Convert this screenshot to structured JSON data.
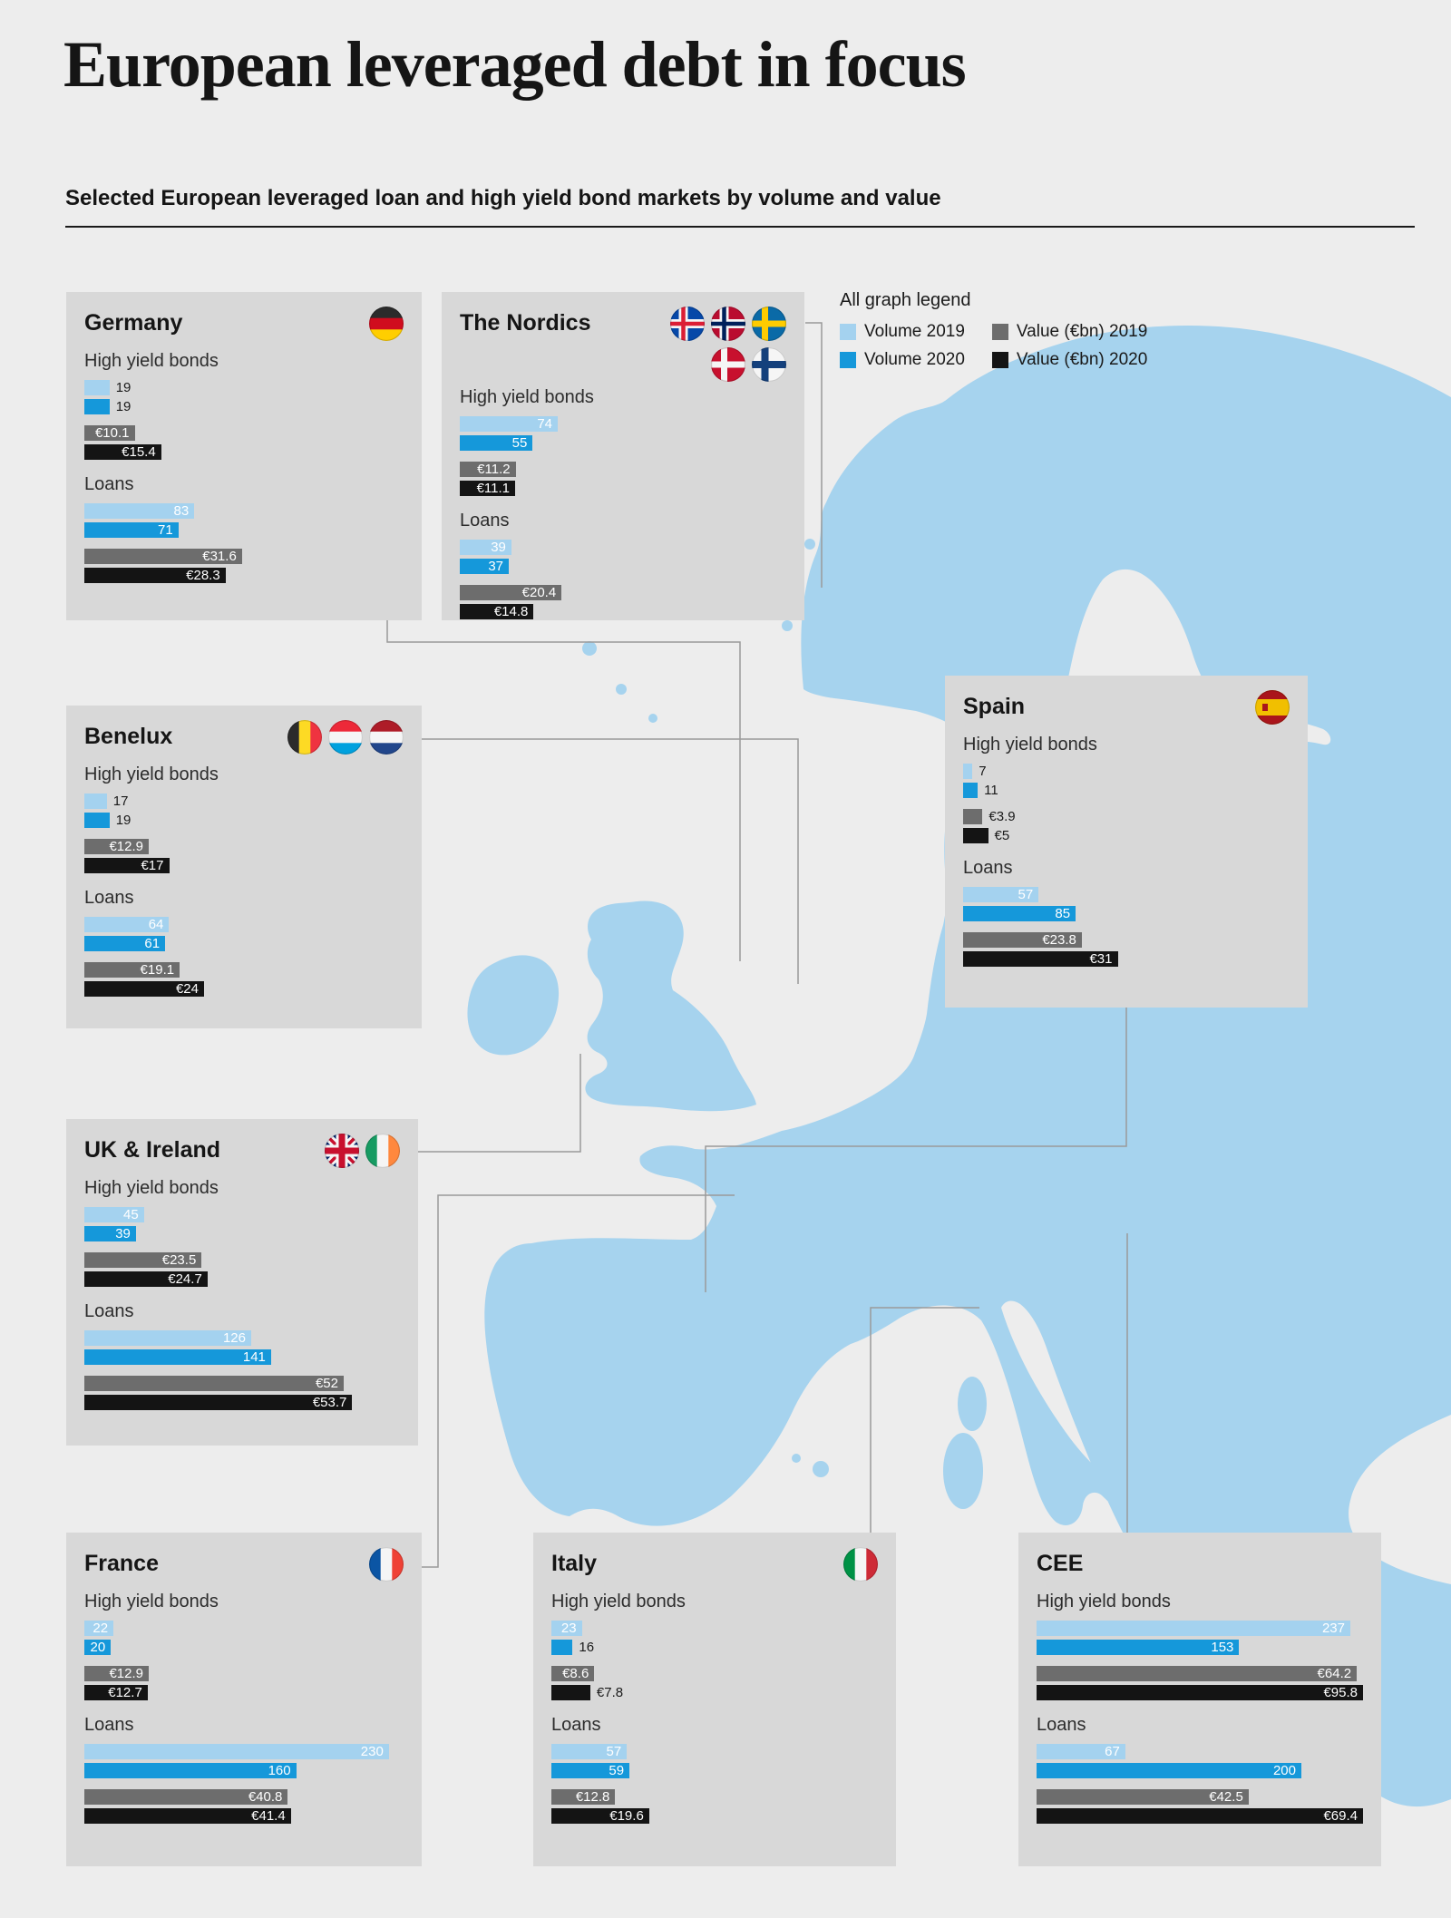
{
  "page": {
    "title": "European leveraged debt in focus",
    "subtitle": "Selected European leveraged loan and high yield bond markets by volume and value"
  },
  "legend": {
    "title": "All graph legend",
    "items": [
      {
        "key": "vol2019",
        "label": "Volume 2019",
        "color": "#a4d2ef"
      },
      {
        "key": "vol2020",
        "label": "Volume 2020",
        "color": "#1598da"
      },
      {
        "key": "val2019",
        "label": "Value (€bn) 2019",
        "color": "#6d6d6d"
      },
      {
        "key": "val2020",
        "label": "Value (€bn) 2020",
        "color": "#141414"
      }
    ]
  },
  "labels": {
    "high_yield_bonds": "High yield bonds",
    "loans": "Loans",
    "currency_prefix": "€"
  },
  "map": {
    "land_color": "#a6d3ee",
    "background_color": "#ededed"
  },
  "chart_data": [
    {
      "type": "bar",
      "region": "Germany",
      "flags": [
        "de"
      ],
      "high_yield_bonds": {
        "volume_2019": 19,
        "volume_2020": 19,
        "value_2019": 10.1,
        "value_2020": 15.4
      },
      "loans": {
        "volume_2019": 83,
        "volume_2020": 71,
        "value_2019": 31.6,
        "value_2020": 28.3
      }
    },
    {
      "type": "bar",
      "region": "The Nordics",
      "flags": [
        "is",
        "no",
        "se",
        "dk",
        "fi"
      ],
      "high_yield_bonds": {
        "volume_2019": 74,
        "volume_2020": 55,
        "value_2019": 11.2,
        "value_2020": 11.1
      },
      "loans": {
        "volume_2019": 39,
        "volume_2020": 37,
        "value_2019": 20.4,
        "value_2020": 14.8
      }
    },
    {
      "type": "bar",
      "region": "Benelux",
      "flags": [
        "be",
        "lu",
        "nl"
      ],
      "high_yield_bonds": {
        "volume_2019": 17,
        "volume_2020": 19,
        "value_2019": 12.9,
        "value_2020": 17
      },
      "loans": {
        "volume_2019": 64,
        "volume_2020": 61,
        "value_2019": 19.1,
        "value_2020": 24
      }
    },
    {
      "type": "bar",
      "region": "Spain",
      "flags": [
        "es"
      ],
      "high_yield_bonds": {
        "volume_2019": 7,
        "volume_2020": 11,
        "value_2019": 3.9,
        "value_2020": 5
      },
      "loans": {
        "volume_2019": 57,
        "volume_2020": 85,
        "value_2019": 23.8,
        "value_2020": 31
      }
    },
    {
      "type": "bar",
      "region": "UK & Ireland",
      "flags": [
        "gb",
        "ie"
      ],
      "high_yield_bonds": {
        "volume_2019": 45,
        "volume_2020": 39,
        "value_2019": 23.5,
        "value_2020": 24.7
      },
      "loans": {
        "volume_2019": 126,
        "volume_2020": 141,
        "value_2019": 52,
        "value_2020": 53.7
      }
    },
    {
      "type": "bar",
      "region": "France",
      "flags": [
        "fr"
      ],
      "high_yield_bonds": {
        "volume_2019": 22,
        "volume_2020": 20,
        "value_2019": 12.9,
        "value_2020": 12.7
      },
      "loans": {
        "volume_2019": 230,
        "volume_2020": 160,
        "value_2019": 40.8,
        "value_2020": 41.4
      }
    },
    {
      "type": "bar",
      "region": "Italy",
      "flags": [
        "it"
      ],
      "high_yield_bonds": {
        "volume_2019": 23,
        "volume_2020": 16,
        "value_2019": 8.6,
        "value_2020": 7.8
      },
      "loans": {
        "volume_2019": 57,
        "volume_2020": 59,
        "value_2019": 12.8,
        "value_2020": 19.6
      }
    },
    {
      "type": "bar",
      "region": "CEE",
      "flags": [],
      "high_yield_bonds": {
        "volume_2019": 237,
        "volume_2020": 153,
        "value_2019": 64.2,
        "value_2020": 95.8
      },
      "loans": {
        "volume_2019": 67,
        "volume_2020": 200,
        "value_2019": 42.5,
        "value_2020": 69.4
      }
    }
  ]
}
